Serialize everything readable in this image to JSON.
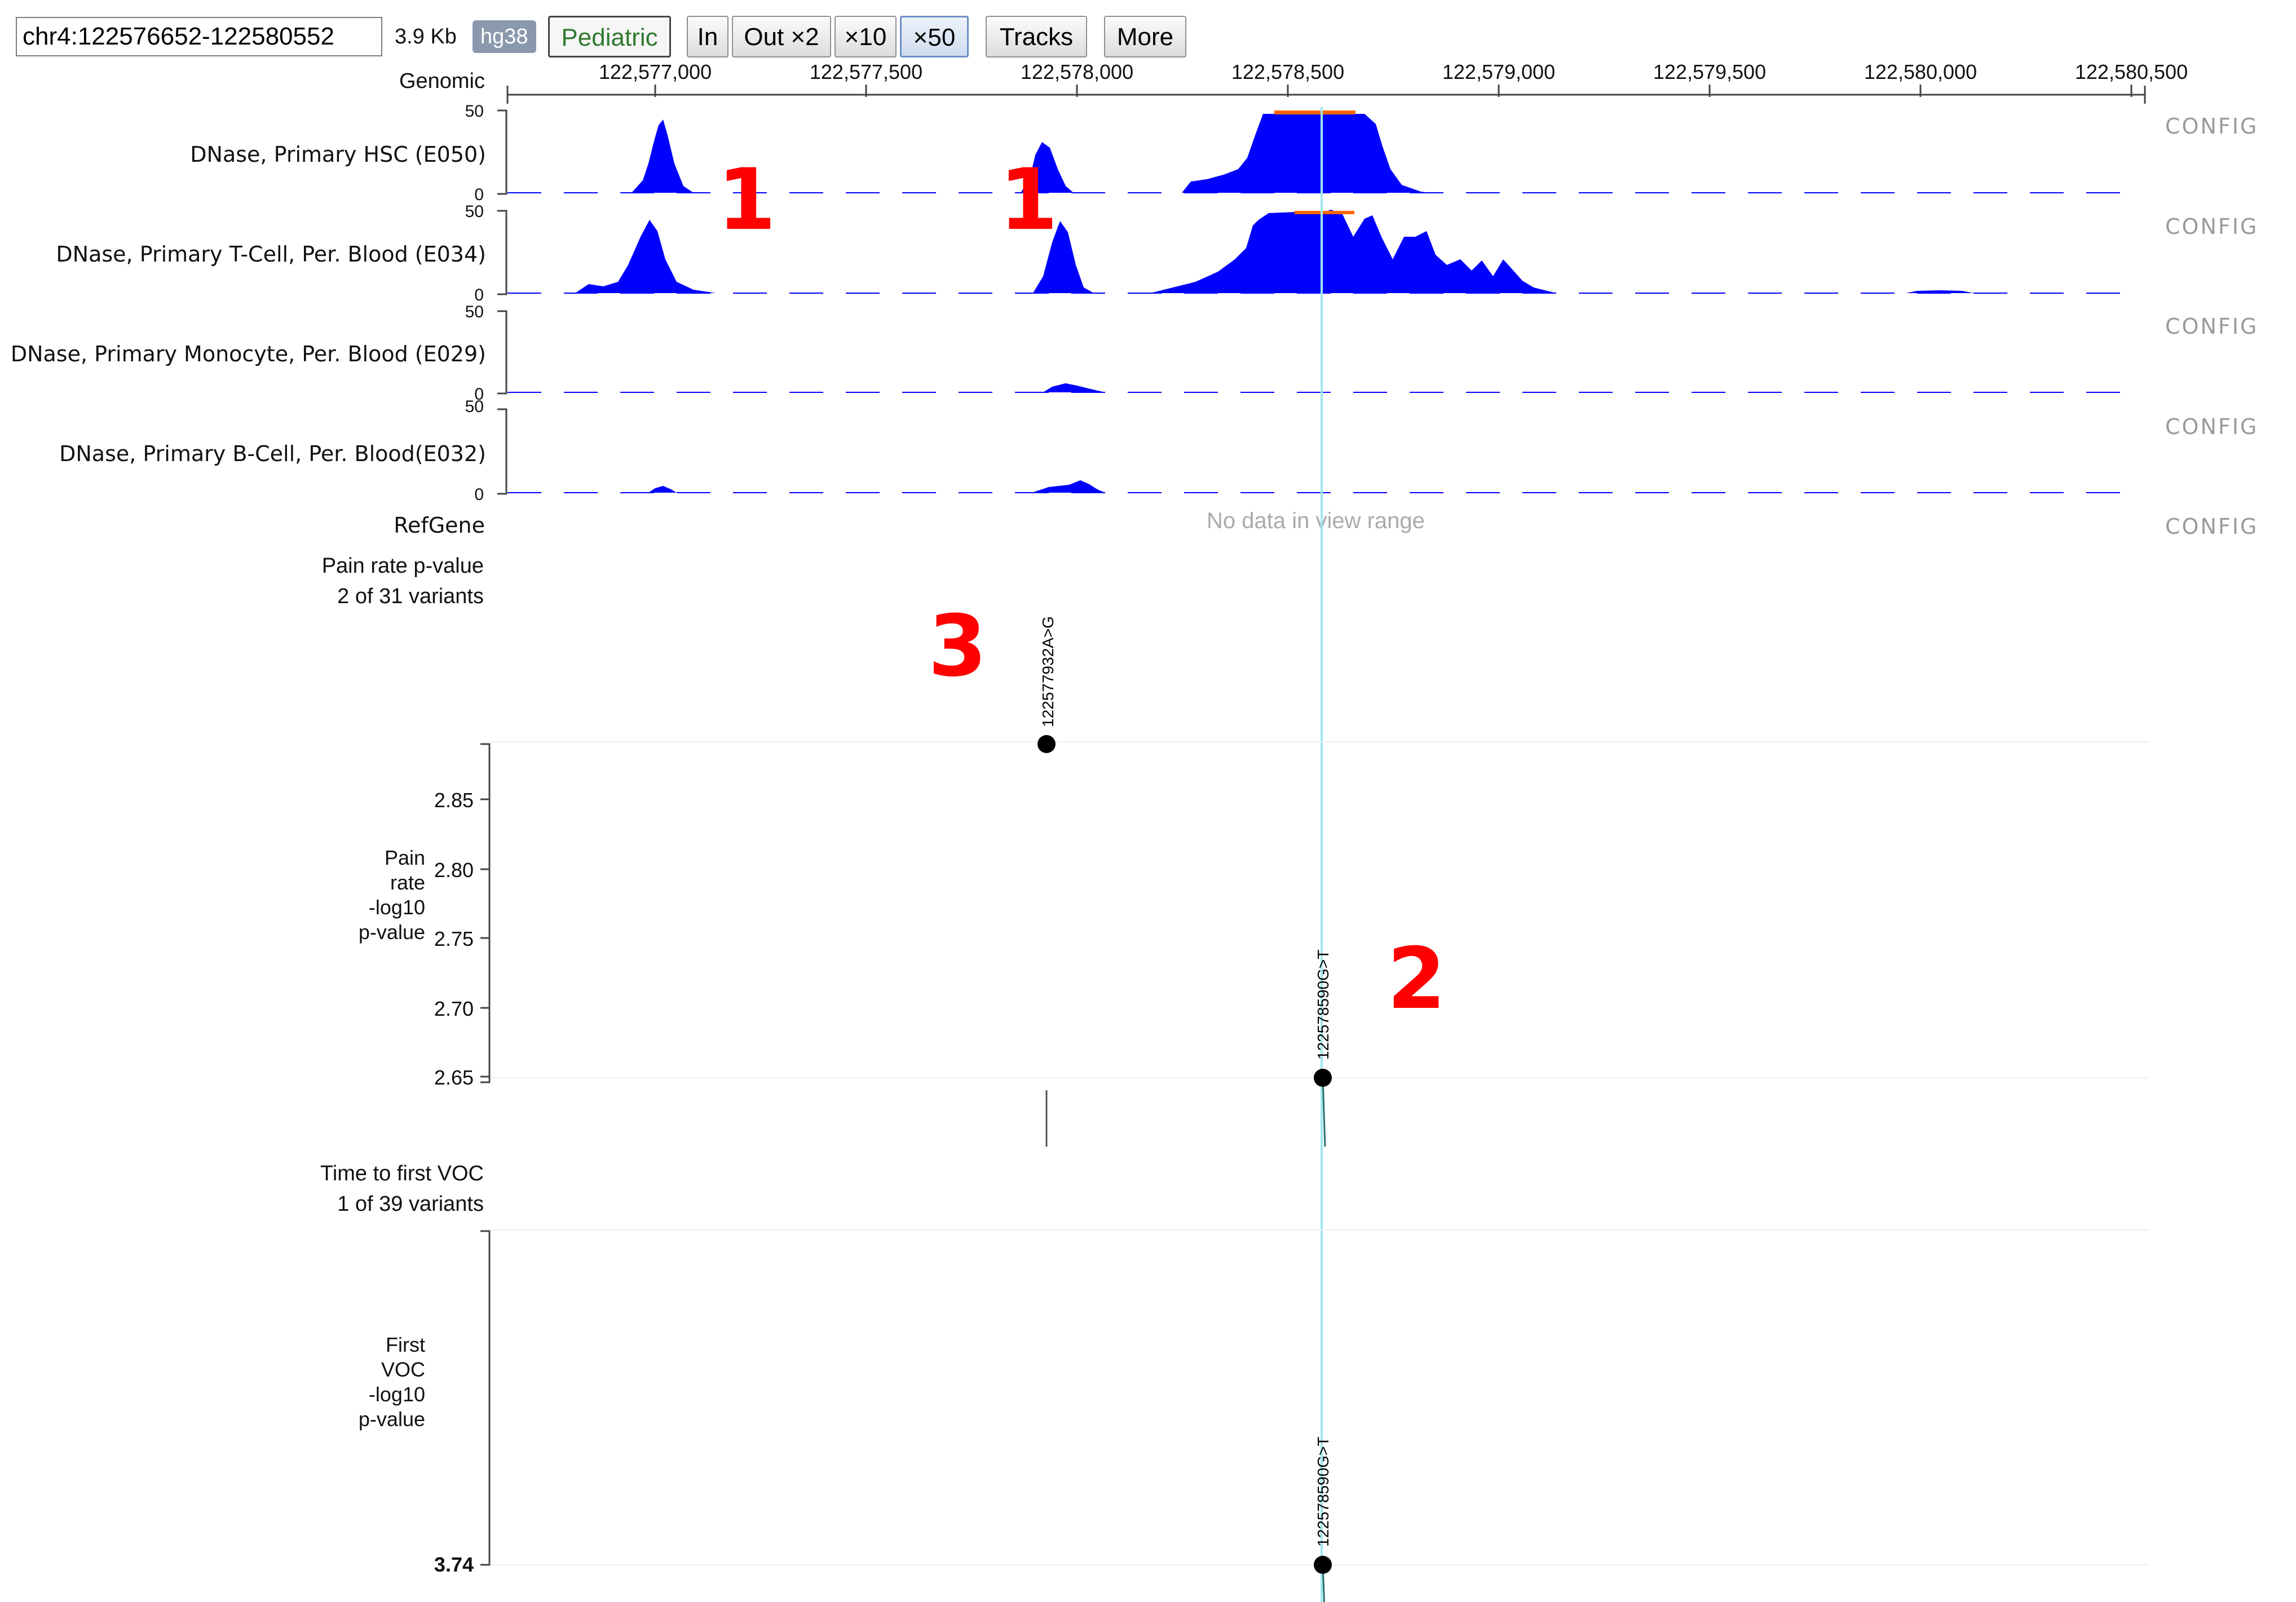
{
  "toolbar": {
    "coordinates": "chr4:122576652-122580552",
    "span": "3.9 Kb",
    "assembly": "hg38",
    "dataset": "Pediatric",
    "zoom_in": "In",
    "zoom_out_2": "Out ×2",
    "zoom_x10": "×10",
    "zoom_x50": "×50",
    "tracks": "Tracks",
    "more": "More"
  },
  "ruler": {
    "label": "Genomic",
    "ticks": [
      "122,577,000",
      "122,577,500",
      "122,578,000",
      "122,578,500",
      "122,579,000",
      "122,579,500",
      "122,580,000",
      "122,580,500"
    ]
  },
  "tracks": [
    {
      "name": "DNase, Primary HSC (E050)",
      "ymax": "50",
      "ymin": "0",
      "config": "CONFIG"
    },
    {
      "name": "DNase, Primary T-Cell, Per. Blood (E034)",
      "ymax": "50",
      "ymin": "0",
      "config": "CONFIG"
    },
    {
      "name": "DNase, Primary Monocyte, Per. Blood (E029)",
      "ymax": "50",
      "ymin": "0",
      "config": "CONFIG"
    },
    {
      "name": "DNase, Primary B-Cell, Per. Blood(E032)",
      "ymax": "50",
      "ymin": "0",
      "config": "CONFIG"
    }
  ],
  "refgene": {
    "name": "RefGene",
    "message": "No data in view range",
    "config": "CONFIG"
  },
  "gwas1": {
    "title": "Pain rate p-value",
    "subtitle": "2 of 31 variants",
    "axis_label_lines": [
      "Pain",
      "rate",
      "-log10",
      "p-value"
    ],
    "ticks": [
      "2.85",
      "2.80",
      "2.75",
      "2.70",
      "2.65"
    ],
    "variants": [
      {
        "label": "122577932A>G",
        "value": 2.89
      },
      {
        "label": "122578590G>T",
        "value": 2.65
      }
    ]
  },
  "gwas2": {
    "title": "Time to first VOC",
    "subtitle": "1 of 39 variants",
    "axis_label_lines": [
      "First",
      "VOC",
      "-log10",
      "p-value"
    ],
    "ticks": [
      "3.74"
    ],
    "variants": [
      {
        "label": "122578590G>T",
        "value": 3.74
      }
    ]
  },
  "annotations": [
    "1",
    "1",
    "2",
    "3"
  ],
  "colors": {
    "signal": "#0000ff",
    "saturated": "#ff6600",
    "cursor": "#9fe8ef",
    "annotation": "#ff0000"
  }
}
